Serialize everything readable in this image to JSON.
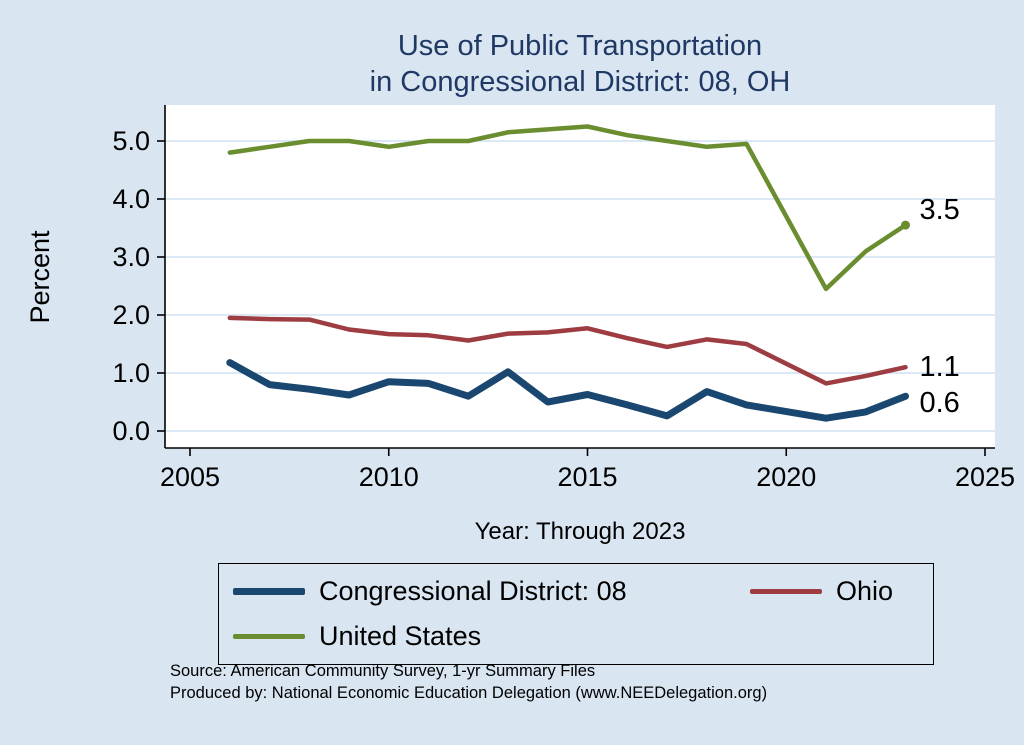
{
  "title": {
    "line1": "Use of Public Transportation",
    "line2": "in Congressional District: 08, OH"
  },
  "axes": {
    "y_label": "Percent",
    "x_label": "Year: Through 2023"
  },
  "legend": {
    "items": [
      {
        "label": "Congressional District: 08",
        "color": "#1a476f"
      },
      {
        "label": "Ohio",
        "color": "#9d3c41"
      },
      {
        "label": "United States",
        "color": "#6a8d2f"
      }
    ]
  },
  "source": {
    "line1": "Source: American Community Survey, 1-yr Summary Files",
    "line2": "Produced by: National Economic Education Delegation (www.NEEDelegation.org)"
  },
  "chart_data": {
    "type": "line",
    "title": "Use of Public Transportation in Congressional District: 08, OH",
    "xlabel": "Year: Through 2023",
    "ylabel": "Percent",
    "xlim": [
      2005,
      2025
    ],
    "ylim": [
      0,
      5.4
    ],
    "grid": true,
    "legend_position": "bottom",
    "x": [
      2006,
      2007,
      2008,
      2009,
      2010,
      2011,
      2012,
      2013,
      2014,
      2015,
      2016,
      2017,
      2018,
      2019,
      2020,
      2021,
      2022,
      2023
    ],
    "x_ticks": [
      {
        "v": 2005,
        "label": "2005"
      },
      {
        "v": 2010,
        "label": "2010"
      },
      {
        "v": 2015,
        "label": "2015"
      },
      {
        "v": 2020,
        "label": "2020"
      },
      {
        "v": 2025,
        "label": "2025"
      }
    ],
    "y_ticks": [
      {
        "v": 0,
        "label": "0.0"
      },
      {
        "v": 1,
        "label": "1.0"
      },
      {
        "v": 2,
        "label": "2.0"
      },
      {
        "v": 3,
        "label": "3.0"
      },
      {
        "v": 4,
        "label": "4.0"
      },
      {
        "v": 5,
        "label": "5.0"
      }
    ],
    "series": [
      {
        "id": "congressional-district-08",
        "name": "Congressional District: 08",
        "color": "#1a476f",
        "width": 7,
        "values": [
          1.18,
          0.8,
          0.72,
          0.62,
          0.85,
          0.82,
          0.6,
          1.02,
          0.5,
          0.63,
          0.45,
          0.26,
          0.68,
          0.45,
          null,
          0.22,
          0.33,
          0.6
        ],
        "end_label": "0.6",
        "end_label_dy": 16,
        "end_dot": false
      },
      {
        "id": "ohio",
        "name": "Ohio",
        "color": "#9d3c41",
        "width": 4.5,
        "values": [
          1.95,
          1.93,
          1.92,
          1.75,
          1.67,
          1.65,
          1.56,
          1.68,
          1.7,
          1.77,
          1.6,
          1.45,
          1.58,
          1.5,
          null,
          0.82,
          0.95,
          1.1
        ],
        "end_label": "1.1",
        "end_label_dy": 9,
        "end_dot": false
      },
      {
        "id": "united-states",
        "name": "United States",
        "color": "#6a8d2f",
        "width": 4.5,
        "values": [
          4.8,
          4.9,
          5.0,
          5.0,
          4.9,
          5.0,
          5.0,
          5.15,
          5.2,
          5.25,
          5.1,
          5.0,
          4.9,
          4.95,
          null,
          2.45,
          3.1,
          3.55
        ],
        "end_label": "3.5",
        "end_label_dy": -6,
        "end_dot": true
      }
    ]
  }
}
